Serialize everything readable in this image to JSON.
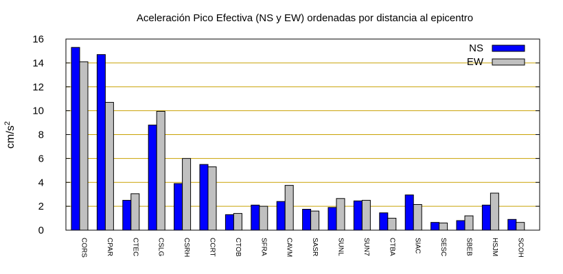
{
  "chart_data": {
    "type": "bar",
    "title": "Aceleración Pico Efectiva (NS y EW) ordenadas por distancia al epicentro",
    "xlabel": "",
    "ylabel": "cm/s",
    "ylabel_superscript": "2",
    "ylim": [
      0,
      16
    ],
    "yticks": [
      0,
      2,
      4,
      6,
      8,
      10,
      12,
      14,
      16
    ],
    "grid": true,
    "legend_position": "top-right",
    "categories": [
      "CORS",
      "CPAR",
      "CTEC",
      "CSLG",
      "CSRH",
      "CCRT",
      "CTOB",
      "SFRA",
      "CAVM",
      "SASR",
      "SUNL",
      "SUN7",
      "CTBA",
      "SIAC",
      "SESC",
      "SBEB",
      "HSJM",
      "SCOH"
    ],
    "series": [
      {
        "name": "NS",
        "color": "#0000ff",
        "values": [
          15.3,
          14.7,
          2.5,
          8.8,
          3.9,
          5.5,
          1.3,
          2.1,
          2.4,
          1.75,
          1.9,
          2.45,
          1.45,
          2.95,
          0.65,
          0.8,
          2.1,
          0.9
        ]
      },
      {
        "name": "EW",
        "color": "#c0c0c0",
        "values": [
          14.1,
          10.7,
          3.05,
          9.95,
          6.0,
          5.3,
          1.4,
          2.0,
          3.75,
          1.6,
          2.65,
          2.5,
          1.0,
          2.15,
          0.6,
          1.2,
          3.1,
          0.65
        ]
      }
    ],
    "grid_color": "#c8a000"
  }
}
